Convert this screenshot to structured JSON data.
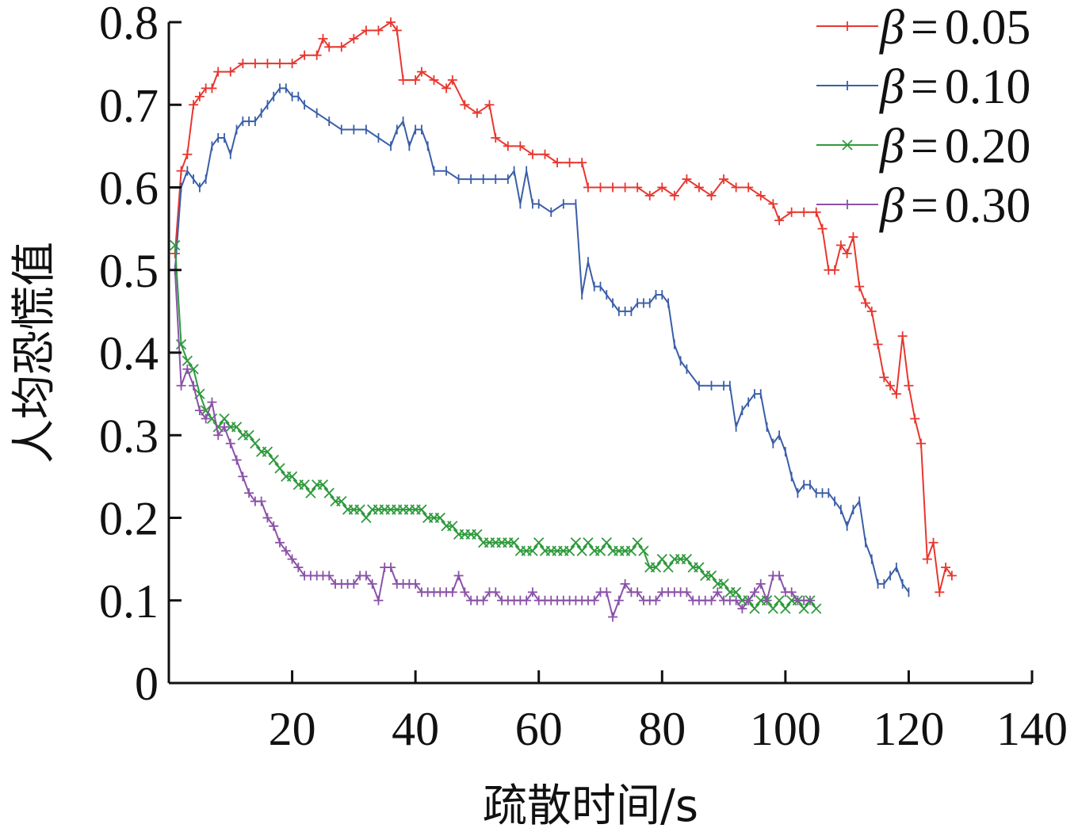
{
  "chart_data": {
    "type": "line",
    "xlabel": "疏散时间/s",
    "ylabel": "人均恐慌值",
    "xlim": [
      0,
      140
    ],
    "ylim": [
      0,
      0.8
    ],
    "xticks": [
      "20",
      "40",
      "60",
      "80",
      "100",
      "120",
      "140"
    ],
    "yticks": [
      "0",
      "0.1",
      "0.2",
      "0.3",
      "0.4",
      "0.5",
      "0.6",
      "0.7",
      "0.8"
    ],
    "xtick_values": [
      20,
      40,
      60,
      80,
      100,
      120,
      140
    ],
    "ytick_values": [
      0,
      0.1,
      0.2,
      0.3,
      0.4,
      0.5,
      0.6,
      0.7,
      0.8
    ],
    "grid": false,
    "legend_position": "top-right",
    "series": [
      {
        "name": "β = 0.05",
        "symbol": "β",
        "eq": "=",
        "value": "0.05",
        "color": "#e8372f",
        "marker": "plus",
        "x": [
          1,
          2,
          3,
          4,
          5,
          6,
          7,
          8,
          10,
          12,
          14,
          16,
          18,
          20,
          22,
          24,
          25,
          26,
          28,
          30,
          32,
          34,
          36,
          37,
          38,
          40,
          41,
          43,
          45,
          46,
          48,
          50,
          52,
          53,
          55,
          57,
          59,
          61,
          63,
          65,
          67,
          68,
          70,
          72,
          74,
          76,
          78,
          80,
          82,
          84,
          86,
          88,
          90,
          92,
          94,
          96,
          98,
          99,
          101,
          103,
          105,
          106,
          107,
          108,
          109,
          110,
          111,
          112,
          113,
          114,
          115,
          116,
          117,
          118,
          119,
          120,
          121,
          122,
          123,
          124,
          125,
          126,
          127
        ],
        "y": [
          0.52,
          0.62,
          0.64,
          0.7,
          0.71,
          0.72,
          0.72,
          0.74,
          0.74,
          0.75,
          0.75,
          0.75,
          0.75,
          0.75,
          0.76,
          0.76,
          0.78,
          0.77,
          0.77,
          0.78,
          0.79,
          0.79,
          0.8,
          0.79,
          0.73,
          0.73,
          0.74,
          0.73,
          0.72,
          0.73,
          0.7,
          0.69,
          0.7,
          0.66,
          0.65,
          0.65,
          0.64,
          0.64,
          0.63,
          0.63,
          0.63,
          0.6,
          0.6,
          0.6,
          0.6,
          0.6,
          0.59,
          0.6,
          0.59,
          0.61,
          0.6,
          0.59,
          0.61,
          0.6,
          0.6,
          0.59,
          0.58,
          0.56,
          0.57,
          0.57,
          0.57,
          0.55,
          0.5,
          0.5,
          0.53,
          0.52,
          0.54,
          0.48,
          0.46,
          0.45,
          0.41,
          0.37,
          0.36,
          0.35,
          0.42,
          0.36,
          0.32,
          0.29,
          0.15,
          0.17,
          0.11,
          0.14,
          0.13
        ]
      },
      {
        "name": "β = 0.10",
        "symbol": "β",
        "eq": "=",
        "value": "0.10",
        "color": "#3a5ea8",
        "marker": "tick",
        "x": [
          1,
          2,
          3,
          4,
          5,
          6,
          7,
          8,
          9,
          10,
          11,
          12,
          13,
          14,
          15,
          16,
          17,
          18,
          19,
          20,
          21,
          22,
          24,
          26,
          28,
          30,
          32,
          34,
          36,
          37,
          38,
          39,
          40,
          41,
          42,
          43,
          45,
          47,
          49,
          51,
          53,
          55,
          56,
          57,
          58,
          59,
          60,
          62,
          64,
          66,
          67,
          68,
          69,
          70,
          71,
          72,
          73,
          74,
          75,
          76,
          77,
          78,
          79,
          80,
          81,
          82,
          83,
          84,
          86,
          88,
          90,
          91,
          92,
          93,
          94,
          95,
          96,
          97,
          98,
          99,
          100,
          101,
          102,
          103,
          104,
          105,
          106,
          107,
          108,
          109,
          110,
          111,
          112,
          113,
          114,
          115,
          116,
          117,
          118,
          119,
          120
        ],
        "y": [
          0.5,
          0.6,
          0.62,
          0.61,
          0.6,
          0.61,
          0.65,
          0.66,
          0.66,
          0.64,
          0.67,
          0.68,
          0.68,
          0.68,
          0.69,
          0.7,
          0.71,
          0.72,
          0.72,
          0.71,
          0.71,
          0.7,
          0.69,
          0.68,
          0.67,
          0.67,
          0.67,
          0.66,
          0.65,
          0.67,
          0.68,
          0.65,
          0.67,
          0.67,
          0.65,
          0.62,
          0.62,
          0.61,
          0.61,
          0.61,
          0.61,
          0.61,
          0.62,
          0.58,
          0.62,
          0.58,
          0.58,
          0.57,
          0.58,
          0.58,
          0.47,
          0.51,
          0.48,
          0.48,
          0.47,
          0.46,
          0.45,
          0.45,
          0.45,
          0.46,
          0.46,
          0.46,
          0.47,
          0.47,
          0.46,
          0.41,
          0.39,
          0.38,
          0.36,
          0.36,
          0.36,
          0.36,
          0.31,
          0.33,
          0.34,
          0.35,
          0.35,
          0.31,
          0.29,
          0.3,
          0.28,
          0.25,
          0.23,
          0.24,
          0.24,
          0.23,
          0.23,
          0.23,
          0.22,
          0.21,
          0.19,
          0.21,
          0.22,
          0.17,
          0.15,
          0.12,
          0.12,
          0.13,
          0.14,
          0.12,
          0.11
        ]
      },
      {
        "name": "β = 0.20",
        "symbol": "β",
        "eq": "=",
        "value": "0.20",
        "color": "#2e9a3c",
        "marker": "x",
        "x": [
          1,
          2,
          3,
          4,
          5,
          6,
          7,
          8,
          9,
          10,
          11,
          12,
          13,
          14,
          15,
          16,
          17,
          18,
          19,
          20,
          21,
          22,
          23,
          24,
          25,
          26,
          27,
          28,
          29,
          30,
          31,
          32,
          33,
          34,
          35,
          36,
          37,
          38,
          39,
          40,
          41,
          42,
          43,
          44,
          45,
          46,
          47,
          48,
          49,
          50,
          51,
          52,
          53,
          54,
          55,
          56,
          57,
          58,
          59,
          60,
          61,
          62,
          63,
          64,
          65,
          66,
          67,
          68,
          69,
          70,
          71,
          72,
          73,
          74,
          75,
          76,
          77,
          78,
          79,
          80,
          81,
          82,
          83,
          84,
          85,
          86,
          87,
          88,
          89,
          90,
          91,
          92,
          93,
          94,
          95,
          96,
          97,
          98,
          99,
          100,
          101,
          102,
          103,
          104,
          105
        ],
        "y": [
          0.53,
          0.41,
          0.39,
          0.38,
          0.35,
          0.33,
          0.32,
          0.31,
          0.32,
          0.31,
          0.31,
          0.3,
          0.3,
          0.29,
          0.28,
          0.28,
          0.27,
          0.26,
          0.25,
          0.25,
          0.24,
          0.24,
          0.23,
          0.24,
          0.24,
          0.23,
          0.22,
          0.22,
          0.21,
          0.21,
          0.21,
          0.2,
          0.21,
          0.21,
          0.21,
          0.21,
          0.21,
          0.21,
          0.21,
          0.21,
          0.21,
          0.2,
          0.2,
          0.2,
          0.19,
          0.19,
          0.18,
          0.18,
          0.18,
          0.18,
          0.17,
          0.17,
          0.17,
          0.17,
          0.17,
          0.17,
          0.16,
          0.16,
          0.16,
          0.17,
          0.16,
          0.16,
          0.16,
          0.16,
          0.16,
          0.17,
          0.16,
          0.17,
          0.16,
          0.16,
          0.17,
          0.16,
          0.16,
          0.16,
          0.16,
          0.17,
          0.16,
          0.14,
          0.14,
          0.15,
          0.14,
          0.15,
          0.15,
          0.15,
          0.14,
          0.14,
          0.13,
          0.13,
          0.12,
          0.12,
          0.11,
          0.11,
          0.1,
          0.1,
          0.09,
          0.1,
          0.1,
          0.09,
          0.1,
          0.09,
          0.1,
          0.1,
          0.09,
          0.1,
          0.09
        ]
      },
      {
        "name": "β = 0.30",
        "symbol": "β",
        "eq": "=",
        "value": "0.30",
        "color": "#8a52a8",
        "marker": "plus",
        "x": [
          1,
          2,
          3,
          4,
          5,
          6,
          7,
          8,
          9,
          10,
          11,
          12,
          13,
          14,
          15,
          16,
          17,
          18,
          19,
          20,
          21,
          22,
          23,
          24,
          25,
          26,
          27,
          28,
          29,
          30,
          31,
          32,
          33,
          34,
          35,
          36,
          37,
          38,
          39,
          40,
          41,
          42,
          43,
          44,
          45,
          46,
          47,
          48,
          49,
          50,
          51,
          52,
          53,
          54,
          55,
          56,
          57,
          58,
          59,
          60,
          61,
          62,
          63,
          64,
          65,
          66,
          67,
          68,
          69,
          70,
          71,
          72,
          73,
          74,
          75,
          76,
          77,
          78,
          79,
          80,
          81,
          82,
          83,
          84,
          85,
          86,
          87,
          88,
          89,
          90,
          91,
          92,
          93,
          94,
          95,
          96,
          97,
          98,
          99,
          100,
          101,
          102,
          103,
          104
        ],
        "y": [
          0.5,
          0.36,
          0.38,
          0.36,
          0.33,
          0.32,
          0.34,
          0.3,
          0.31,
          0.29,
          0.27,
          0.25,
          0.23,
          0.22,
          0.22,
          0.2,
          0.19,
          0.17,
          0.16,
          0.15,
          0.14,
          0.13,
          0.13,
          0.13,
          0.13,
          0.13,
          0.12,
          0.12,
          0.12,
          0.12,
          0.13,
          0.13,
          0.12,
          0.1,
          0.14,
          0.14,
          0.12,
          0.12,
          0.12,
          0.12,
          0.11,
          0.11,
          0.11,
          0.11,
          0.11,
          0.11,
          0.13,
          0.11,
          0.1,
          0.1,
          0.1,
          0.11,
          0.11,
          0.1,
          0.1,
          0.1,
          0.1,
          0.1,
          0.11,
          0.1,
          0.1,
          0.1,
          0.1,
          0.1,
          0.1,
          0.1,
          0.1,
          0.1,
          0.1,
          0.11,
          0.11,
          0.08,
          0.1,
          0.12,
          0.11,
          0.11,
          0.1,
          0.1,
          0.1,
          0.11,
          0.11,
          0.11,
          0.11,
          0.11,
          0.1,
          0.1,
          0.1,
          0.1,
          0.11,
          0.1,
          0.1,
          0.1,
          0.09,
          0.1,
          0.11,
          0.12,
          0.1,
          0.13,
          0.13,
          0.11,
          0.11,
          0.1,
          0.1,
          0.1
        ]
      }
    ]
  }
}
